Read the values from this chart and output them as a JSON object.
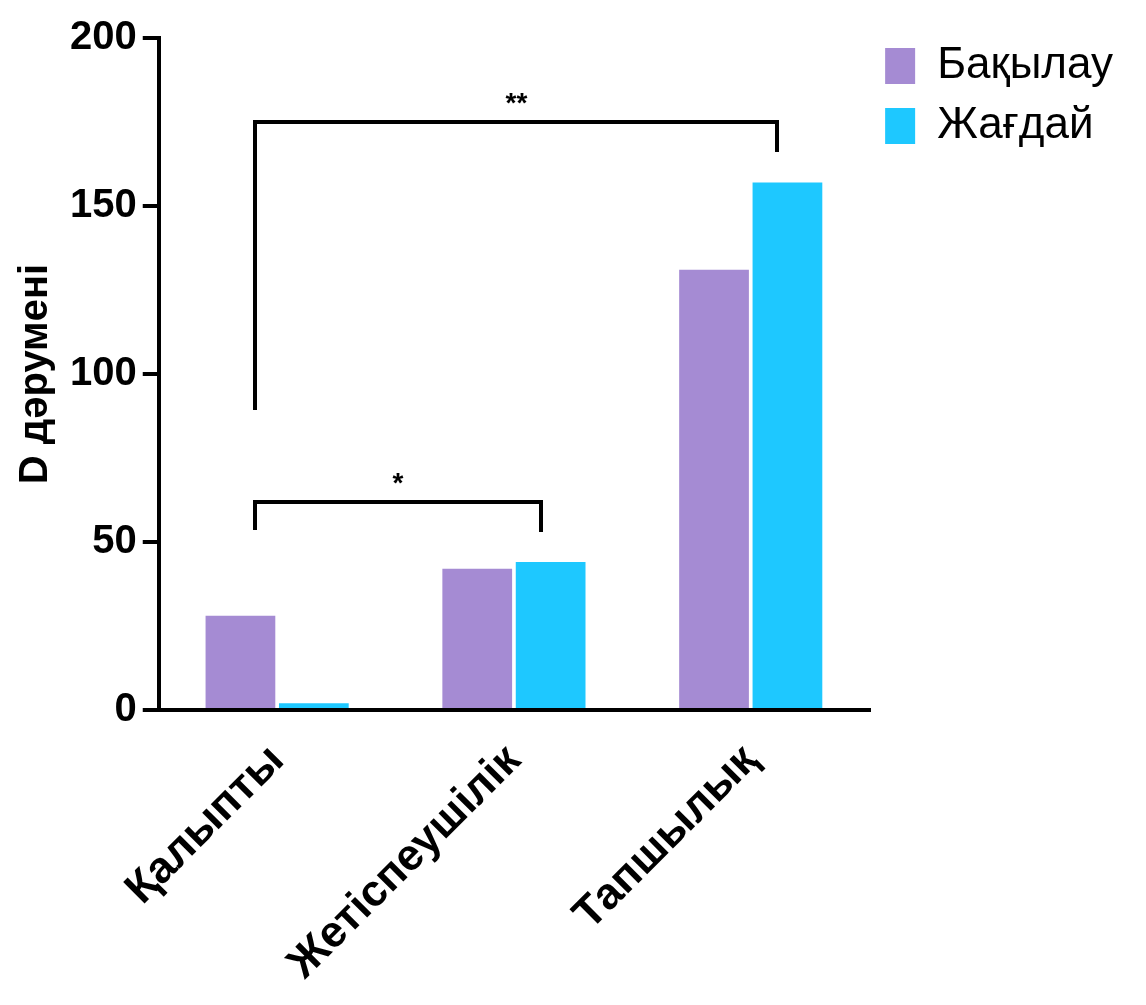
{
  "chart_data": {
    "type": "bar",
    "ylabel": "D дәрумені",
    "categories": [
      "Қалыпты",
      "Жетіспеушілік",
      "Тапшылық"
    ],
    "series": [
      {
        "name": "Бақылау",
        "color": "#a58bd3",
        "values": [
          28,
          42,
          131
        ]
      },
      {
        "name": "Жағдай",
        "color": "#1ec8ff",
        "values": [
          2,
          44,
          157
        ]
      }
    ],
    "ylim": [
      0,
      200
    ],
    "yticks": [
      0,
      50,
      100,
      150,
      200
    ],
    "annotations": [
      "*",
      "**"
    ],
    "legend": "top right",
    "grid": false
  }
}
